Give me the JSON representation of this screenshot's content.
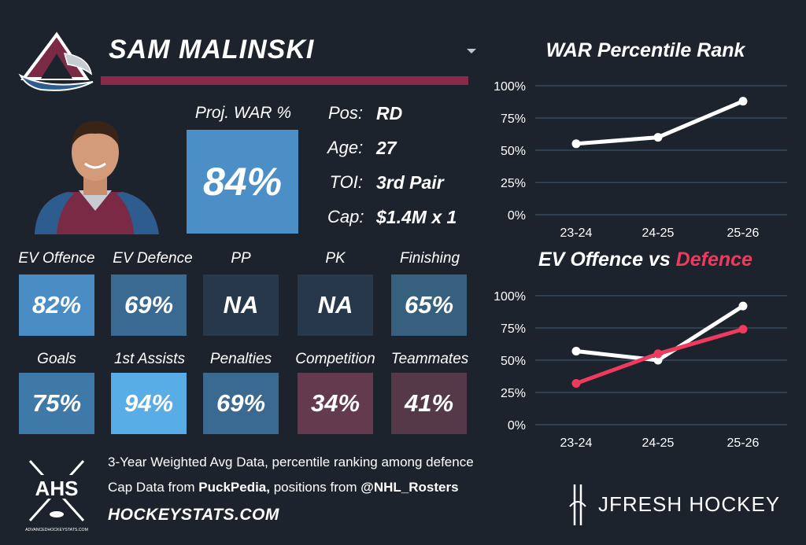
{
  "player": {
    "name": "SAM MALINSKI",
    "proj_war_label": "Proj. WAR %",
    "proj_war_value": "84%",
    "info": [
      {
        "label": "Pos:",
        "value": "RD"
      },
      {
        "label": "Age:",
        "value": "27"
      },
      {
        "label": "TOI:",
        "value": "3rd Pair"
      },
      {
        "label": "Cap:",
        "value": "$1.4M x 1"
      }
    ]
  },
  "colors": {
    "background": "#1d232c",
    "name_bar": "#8a2a48",
    "white_line": "#ffffff",
    "defence_line": "#ef3a5d",
    "grid": "#3a5366"
  },
  "stats": {
    "row1": [
      {
        "label": "EV Offence",
        "value": "82%",
        "color": "#4a8dc4"
      },
      {
        "label": "EV Defence",
        "value": "69%",
        "color": "#3a6a92"
      },
      {
        "label": "PP",
        "value": "NA",
        "color": "#27384a"
      },
      {
        "label": "PK",
        "value": "NA",
        "color": "#27384a"
      },
      {
        "label": "Finishing",
        "value": "65%",
        "color": "#37607f"
      }
    ],
    "row2": [
      {
        "label": "Goals",
        "value": "75%",
        "color": "#3f79a8"
      },
      {
        "label": "1st Assists",
        "value": "94%",
        "color": "#58ade7"
      },
      {
        "label": "Penalties",
        "value": "69%",
        "color": "#3a6a92"
      },
      {
        "label": "Competition",
        "value": "34%",
        "color": "#643a4f"
      },
      {
        "label": "Teammates",
        "value": "41%",
        "color": "#553949"
      }
    ]
  },
  "footer": {
    "line1": "3-Year Weighted Avg Data, percentile ranking among defence",
    "line2_prefix": "Cap Data from ",
    "line2_puck": "PuckPedia,",
    "line2_middle": " positions from ",
    "line2_rosters": "@NHL_Rosters",
    "website": "HOCKEYSTATS.COM",
    "ahs_text": "AHS",
    "ahs_small": "ADVANCEDHOCKEYSTATS.COM",
    "brand": "JFRESH HOCKEY"
  },
  "chart_data": [
    {
      "type": "line",
      "title": "WAR Percentile Rank",
      "categories": [
        "23-24",
        "24-25",
        "25-26"
      ],
      "y_ticks": [
        "0%",
        "25%",
        "50%",
        "75%",
        "100%"
      ],
      "ylim": [
        0,
        100
      ],
      "series": [
        {
          "values": [
            55,
            60,
            88
          ],
          "color": "#ffffff"
        }
      ]
    },
    {
      "type": "line",
      "title_part1": "EV Offence vs ",
      "title_part2": "Defence",
      "categories": [
        "23-24",
        "24-25",
        "25-26"
      ],
      "y_ticks": [
        "0%",
        "25%",
        "50%",
        "75%",
        "100%"
      ],
      "ylim": [
        0,
        100
      ],
      "series": [
        {
          "values": [
            57,
            50,
            92
          ],
          "color": "#ffffff"
        },
        {
          "values": [
            32,
            55,
            74
          ],
          "color": "#ef3a5d"
        }
      ]
    }
  ]
}
